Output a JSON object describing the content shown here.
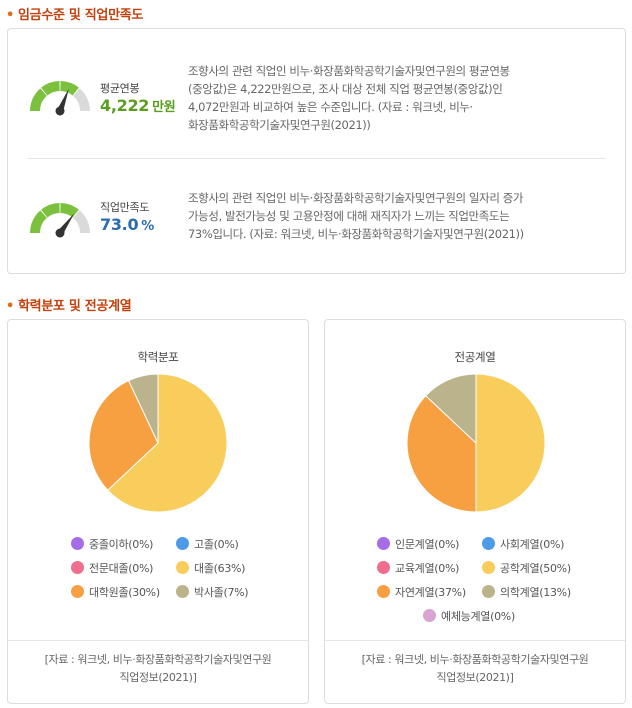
{
  "sections": {
    "wage": {
      "title": "임금수준 및 직업만족도"
    },
    "education": {
      "title": "학력분포 및 전공계열"
    }
  },
  "metrics": [
    {
      "label": "평균연봉",
      "value": "4,222",
      "unit": "만원",
      "value_color": "#5a9e1f",
      "gauge_level": 0.62,
      "desc": [
        "조향사의 관련 직업인 비누·화장품화학공학기술자및연구원의 평균연봉",
        "(중앙값)은 4,222만원으로, 조사 대상 전체 직업 평균연봉(중앙값)인",
        "4,072만원과 비교하여 높은 수준입니다. (자료 : 워크넷, 비누·",
        "화장품화학공학기술자및연구원(2021))"
      ]
    },
    {
      "label": "직업만족도",
      "value": "73.0",
      "unit": "%",
      "value_color": "#2b6cb0",
      "gauge_level": 0.7,
      "desc": [
        "조향사의 관련 직업인 비누·화장품화학공학기술자및연구원의 일자리 증가",
        "가능성, 발전가능성 및 고용안정에 대해 재직자가 느끼는 직업만족도는",
        "73%입니다. (자료: 워크넷, 비누·화장품화학공학기술자및연구원(2021))"
      ]
    }
  ],
  "chart_data": [
    {
      "type": "pie",
      "title": "학력분포",
      "categories": [
        "중졸이하",
        "고졸",
        "전문대졸",
        "대졸",
        "대학원졸",
        "박사졸"
      ],
      "values": [
        0,
        0,
        0,
        63,
        30,
        7
      ],
      "colors": [
        "#a56ee8",
        "#4d9be6",
        "#ef6e8e",
        "#f8cd5c",
        "#f7a041",
        "#bab38b"
      ],
      "legend": [
        "중졸이하(0%)",
        "고졸(0%)",
        "전문대졸(0%)",
        "대졸(63%)",
        "대학원졸(30%)",
        "박사졸(7%)"
      ],
      "source": [
        "[자료 : 워크넷, 비누·화장품화학공학기술자및연구원",
        "직업정보(2021)]"
      ]
    },
    {
      "type": "pie",
      "title": "전공계열",
      "categories": [
        "인문계열",
        "사회계열",
        "교육계열",
        "공학계열",
        "자연계열",
        "의학계열",
        "예체능계열"
      ],
      "values": [
        0,
        0,
        0,
        50,
        37,
        13,
        0
      ],
      "colors": [
        "#a56ee8",
        "#4d9be6",
        "#ef6e8e",
        "#f8cd5c",
        "#f7a041",
        "#bab38b",
        "#d9a3d2"
      ],
      "legend": [
        "인문계열(0%)",
        "사회계열(0%)",
        "교육계열(0%)",
        "공학계열(50%)",
        "자연계열(37%)",
        "의학계열(13%)",
        "예체능계열(0%)"
      ],
      "source": [
        "[자료 : 워크넷, 비누·화장품화학공학기술자및연구원",
        "직업정보(2021)]"
      ]
    }
  ]
}
